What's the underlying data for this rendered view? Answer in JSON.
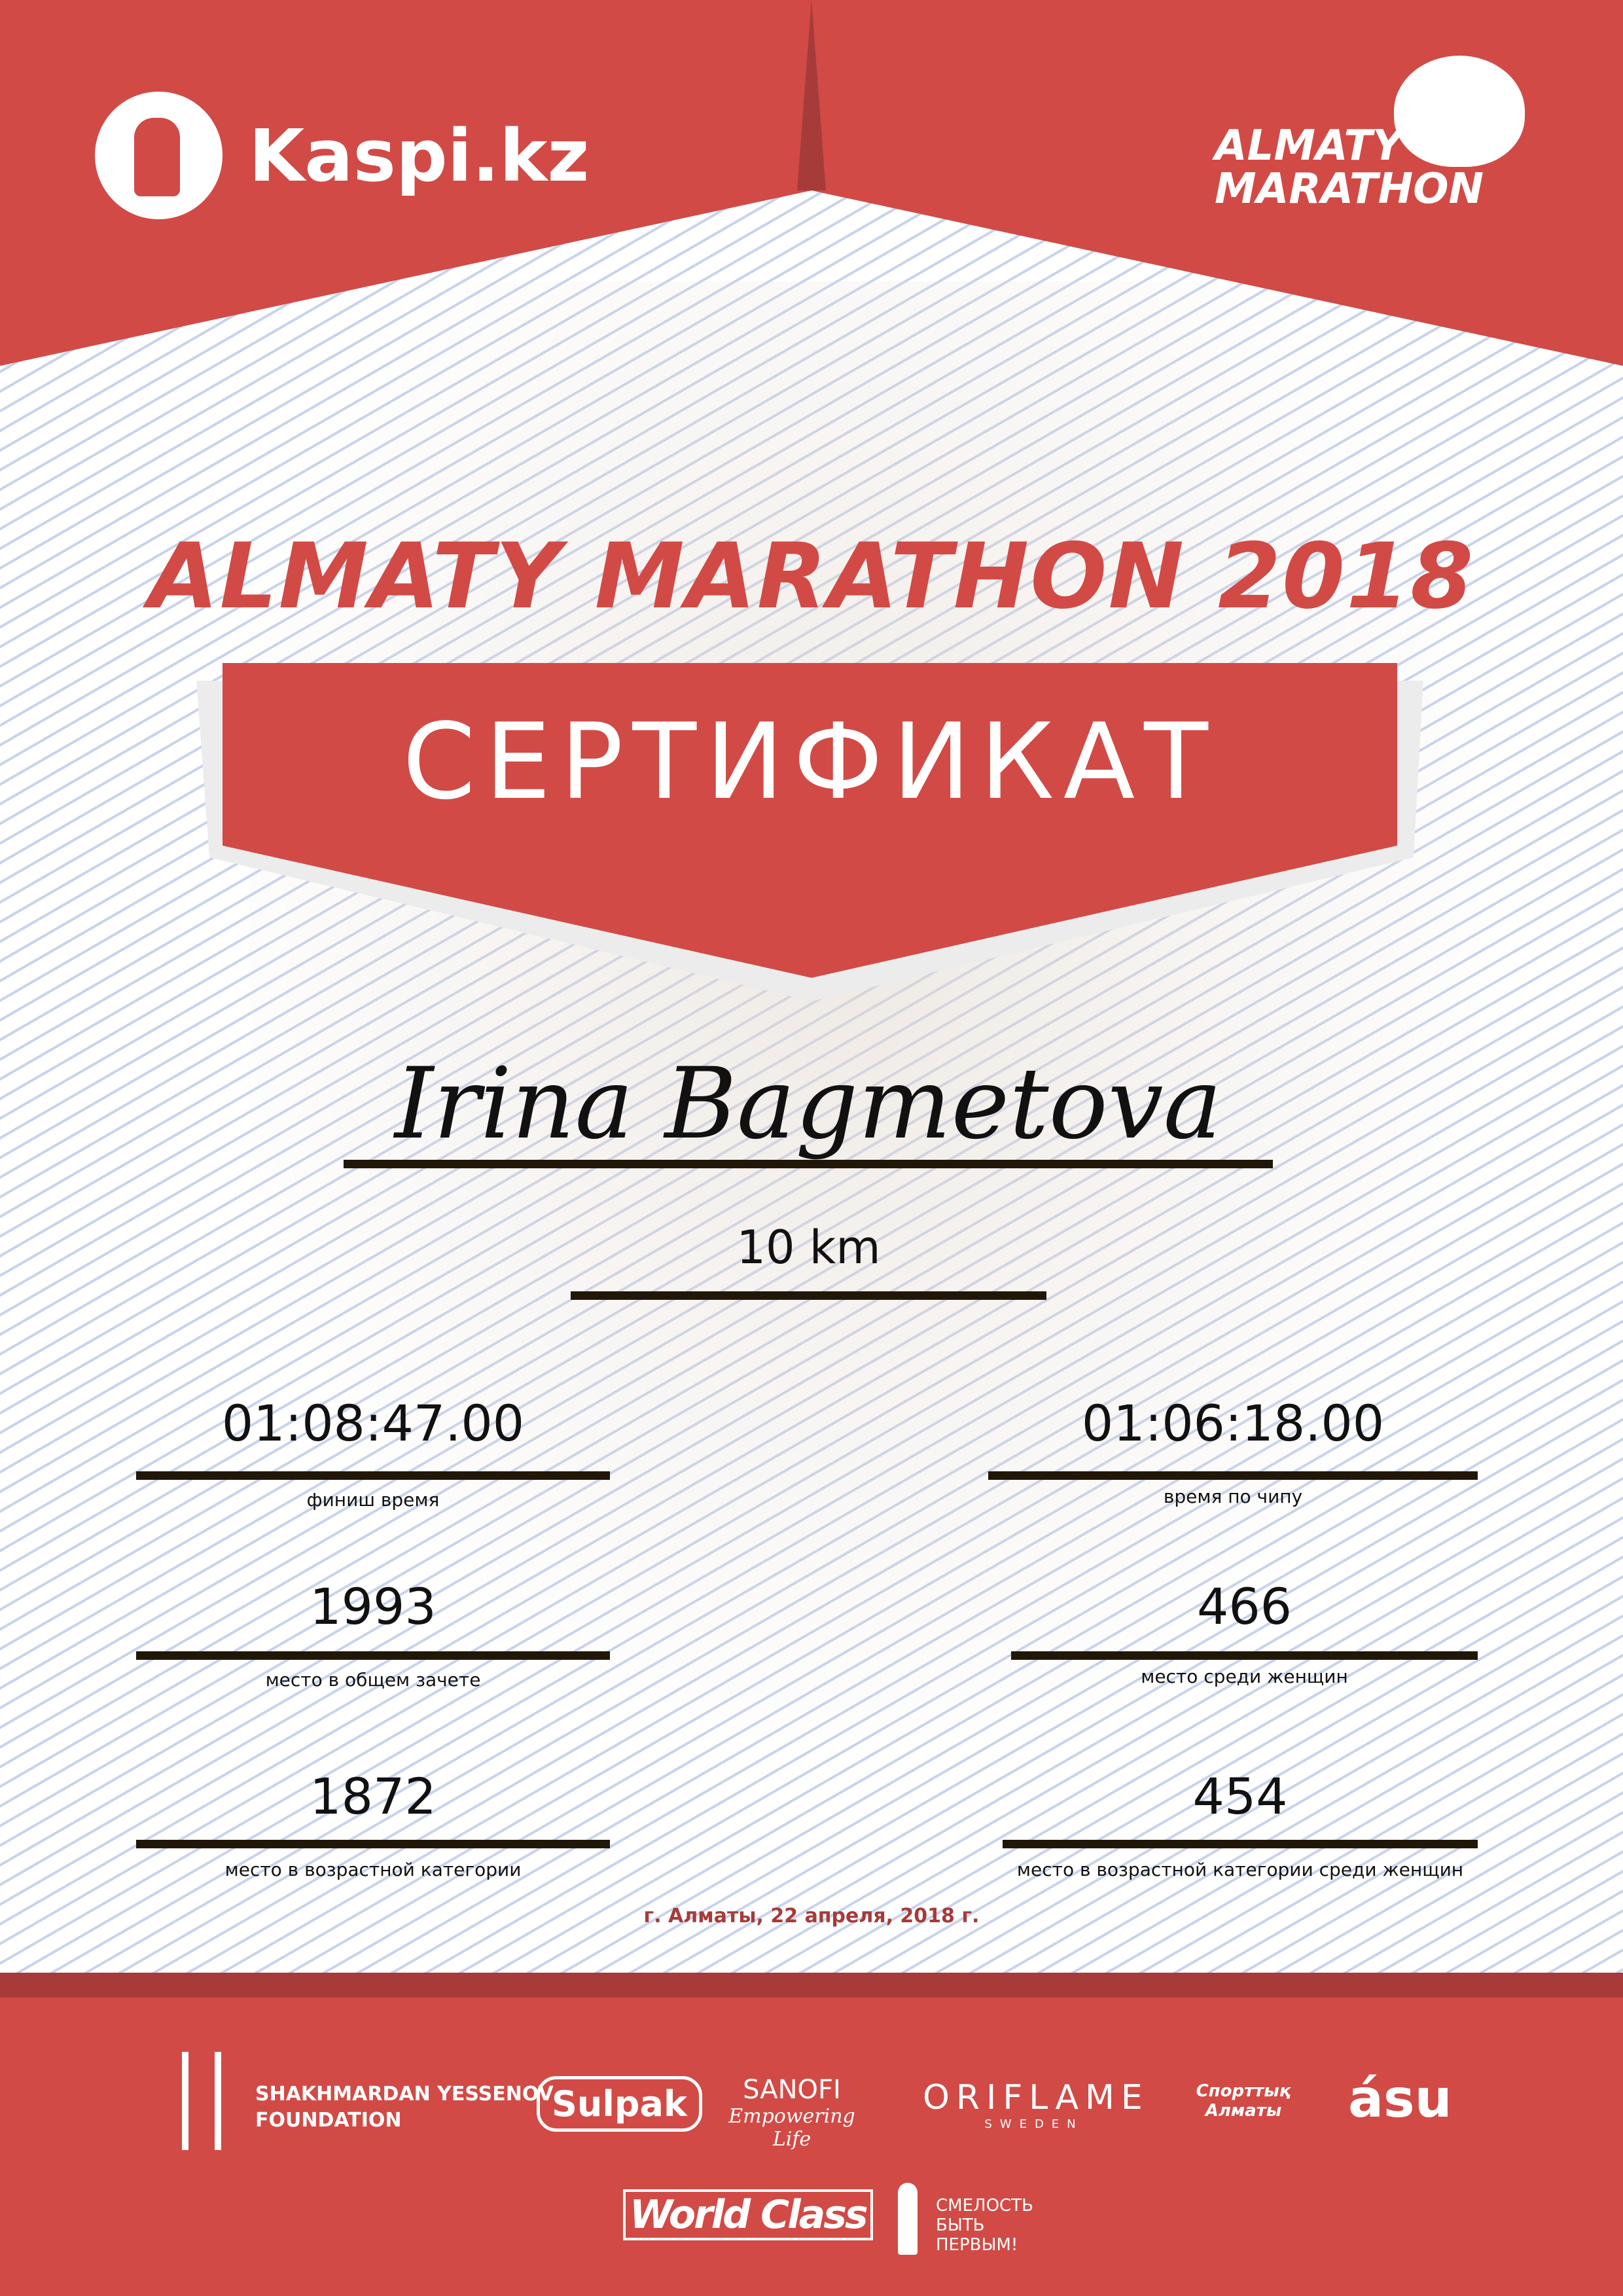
{
  "header": {
    "sponsor_logo": "Kaspi.kz",
    "event_logo_line1": "ALMATY",
    "event_logo_line2": "MARATHON"
  },
  "title": "ALMATY MARATHON 2018",
  "certificate_label": "СЕРТИФИКАТ",
  "participant_name": "Irina Bagmetova",
  "distance": "10 km",
  "results": [
    {
      "value": "01:08:47.00",
      "label": "финиш время"
    },
    {
      "value": "01:06:18.00",
      "label": "время по чипу"
    },
    {
      "value": "1993",
      "label": "место в общем зачете"
    },
    {
      "value": "466",
      "label": "место среди женщин"
    },
    {
      "value": "1872",
      "label": "место в возрастной категории"
    },
    {
      "value": "454",
      "label": "место в возрастной категории среди женщин"
    }
  ],
  "date": "г. Алматы, 22 апреля, 2018 г.",
  "sponsors": {
    "yessenov_1": "SHAKHMARDAN YESSENOV",
    "yessenov_2": "FOUNDATION",
    "sulpak": "Sulpak",
    "sanofi": "SANOFI",
    "sanofi_tag": "Empowering Life",
    "oriflame": "ORIFLAME",
    "oriflame_sub": "SWEDEN",
    "sport": "Спорттық Алматы",
    "asu": "ásu",
    "worldclass": "World Class",
    "fund_1": "СМЕЛОСТЬ",
    "fund_2": "БЫТЬ",
    "fund_3": "ПЕРВЫМ!"
  },
  "colors": {
    "red": "#d24a45",
    "dark_red": "#a63b3a",
    "line": "#211708",
    "pattern": "#c9d3ec"
  }
}
